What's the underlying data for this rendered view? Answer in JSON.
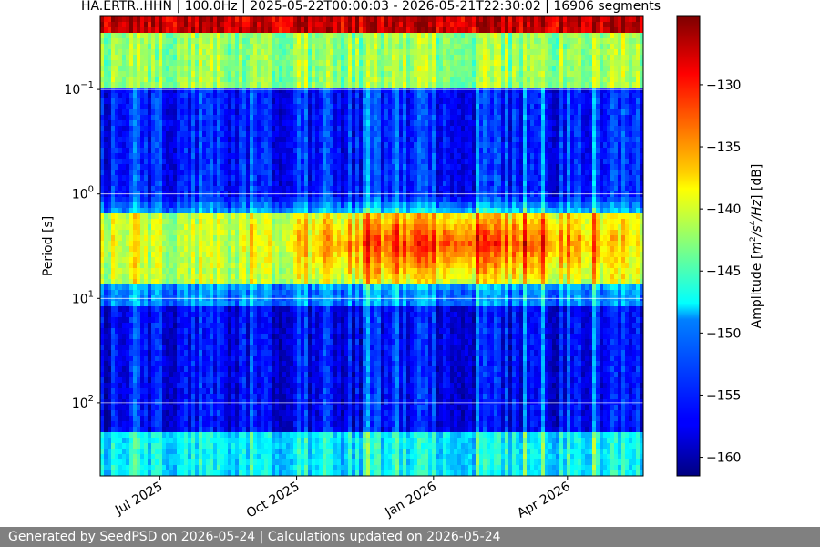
{
  "chart_data": {
    "type": "heatmap",
    "title": "HA.ERTR..HHN | 100.0Hz | 2025-05-22T00:00:03 - 2026-05-21T22:30:02 | 16906 segments",
    "ylabel": "Period [s]",
    "xlabel": "",
    "x_range": [
      "2025-05-22T00:00:03",
      "2026-05-21T22:30:02"
    ],
    "x_ticks": [
      {
        "label": "Jul 2025",
        "date": "2025-07-01"
      },
      {
        "label": "Oct 2025",
        "date": "2025-10-01"
      },
      {
        "label": "Jan 2026",
        "date": "2026-01-01"
      },
      {
        "label": "Apr 2026",
        "date": "2026-04-01"
      }
    ],
    "y_scale": "log",
    "y_inverted": true,
    "y_range": [
      0.02,
      500
    ],
    "y_ticks": [
      {
        "base": "10",
        "exp": "−1",
        "value": 0.1
      },
      {
        "base": "10",
        "exp": "0",
        "value": 1
      },
      {
        "base": "10",
        "exp": "1",
        "value": 10
      },
      {
        "base": "10",
        "exp": "2",
        "value": 100
      }
    ],
    "grid": true,
    "colormap": "jet",
    "colorbar": {
      "label_prefix": "Amplitude [",
      "label_math": "m",
      "label_sup1": "2",
      "label_mid": "/s",
      "label_sup2": "4",
      "label_math2": "/Hz",
      "label_suffix": "] [dB]",
      "range": [
        -161.5,
        -124.5
      ],
      "ticks": [
        -130,
        -135,
        -140,
        -145,
        -150,
        -155,
        -160
      ],
      "tick_labels": [
        "−130",
        "−135",
        "−140",
        "−145",
        "−150",
        "−155",
        "−160"
      ]
    },
    "bands": [
      {
        "period_range": [
          0.02,
          0.03
        ],
        "amplitude_db": -127
      },
      {
        "period_range": [
          0.03,
          0.1
        ],
        "amplitude_db": -142
      },
      {
        "period_range": [
          0.1,
          1.5
        ],
        "amplitude_db": -156
      },
      {
        "period_range": [
          1.5,
          7
        ],
        "amplitude_db": -141
      },
      {
        "period_range": [
          7,
          12
        ],
        "amplitude_db": -152
      },
      {
        "period_range": [
          12,
          200
        ],
        "amplitude_db": -157
      },
      {
        "period_range": [
          200,
          500
        ],
        "amplitude_db": -148
      }
    ],
    "secondary_microseism_peak": {
      "period": 3,
      "summer_db": -141,
      "winter_db": -131
    }
  },
  "footer": {
    "text": "Generated by SeedPSD on 2026-05-24 | Calculations updated on 2026-05-24"
  }
}
